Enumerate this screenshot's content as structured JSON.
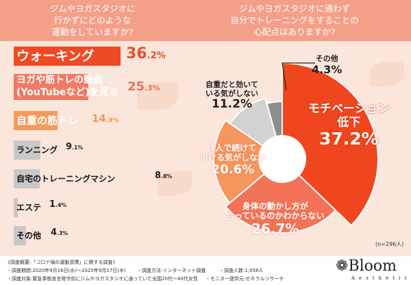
{
  "questions": {
    "left": "ジムやヨガスタジオに\n行かずにどのような\n運動をしていますか?",
    "right": "ジムやヨガスタジオに通わず\n自分でトレーニングをすることの\n心配点はありますか?"
  },
  "chart_data": [
    {
      "type": "bar",
      "title": "ジムやヨガスタジオに行かずにどのような運動をしていますか?",
      "categories": [
        "ウォーキング",
        "ヨガや筋トレの動画(YouTubeなど)を見る",
        "自重の筋トレ",
        "ランニング",
        "自宅のトレーニングマシン",
        "エステ",
        "その他"
      ],
      "values": [
        36.2,
        25.3,
        14.9,
        9.1,
        8.8,
        1.4,
        4.3
      ],
      "labels": [
        [
          "ウォーキング"
        ],
        [
          "ヨガや筋トレの動画",
          "(YouTubeなど)を見る"
        ],
        [
          "自重の筋トレ"
        ],
        [
          "ランニング"
        ],
        [
          "自宅のトレーニングマシン"
        ],
        [
          "エステ"
        ],
        [
          "その他"
        ]
      ],
      "value_text": [
        [
          "36",
          ".2%"
        ],
        [
          "25",
          ".3%"
        ],
        [
          "14",
          ".9%"
        ],
        [
          "9",
          ".1%"
        ],
        [
          "8",
          ".8%"
        ],
        [
          "1",
          ".4%"
        ],
        [
          "4",
          ".3%"
        ]
      ],
      "colors": [
        "#ef4a24",
        "#f07a66",
        "#f39a5e",
        "#c8c8c8",
        "#c8c8c8",
        "#c8c8c8",
        "#c8c8c8"
      ]
    },
    {
      "type": "pie",
      "title": "ジムやヨガスタジオに通わず自分でトレーニングをすることの心配点はありますか?",
      "categories": [
        "モチベーション低下",
        "身体の動かし方が合っているのかわからない",
        "1人で続けていける気がしない",
        "自重だと効いている気がしない",
        "その他"
      ],
      "labels": [
        "モチベーション\n低下",
        "身体の動かし方が\n合っているのかわからない",
        "1人で続けて\nいける気がしない",
        "自重だと効いて\nいる気がしない",
        "その他"
      ],
      "values": [
        37.2,
        26.7,
        20.6,
        11.2,
        4.3
      ],
      "value_text": [
        "37.2%",
        "26.7%",
        "20.6%",
        "11.2%",
        "4.3%"
      ],
      "colors": [
        "#f0461e",
        "#f27357",
        "#f5975c",
        "#d2d2d2",
        "#8e8e8e"
      ],
      "note": "(n=296人)"
    }
  ],
  "footer": {
    "title": "《調査概要:「コロナ禍の運動習慣」に関する調査》",
    "period": "・調査期間:2020年9月16日(水)〜2020年9月17日(木)",
    "method": "・調査方法:インターネット調査",
    "count": "・調査人数:1,058人",
    "target": "・調査対象:緊急事態宣言発令前にジムやヨガスタジオに通っていた全国20代〜40代女性",
    "provider": "・モニター提供元:ゼネラルリサーチ",
    "logo": "Bloom",
    "logo_sub": "Aesthetic"
  }
}
